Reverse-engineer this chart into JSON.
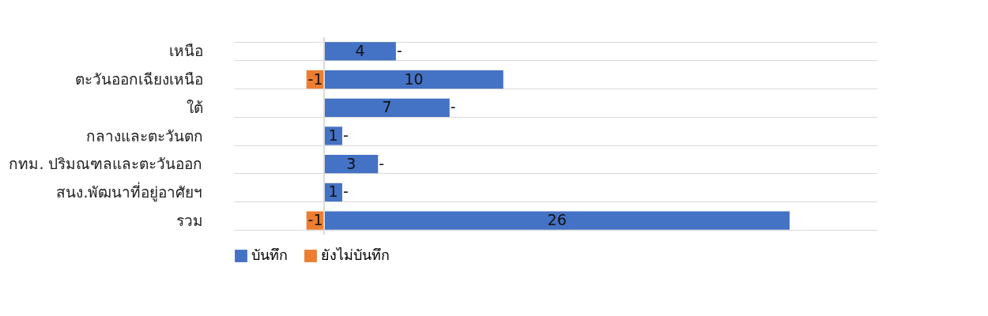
{
  "chart_data": {
    "type": "bar",
    "orientation": "horizontal",
    "stacked": true,
    "grid": "y",
    "legend": "bottom",
    "tick_labels": "y",
    "categories": [
      "เหนือ",
      "ตะวันออกเฉียงเหนือ",
      "ใต้",
      "กลางและตะวันตก",
      "กทม. ปริมณฑลและตะวันออก",
      "สนง.พัฒนาที่อยู่อาศัยฯ",
      "รวม"
    ],
    "series": [
      {
        "name": "บันทึก",
        "color": "#4472c4",
        "values": [
          4,
          10,
          7,
          1,
          3,
          1,
          26
        ],
        "value_labels": [
          "4",
          "10",
          "7",
          "1",
          "3",
          "1",
          "26"
        ]
      },
      {
        "name": "ยังไม่บันทึก",
        "color": "#ed7d31",
        "values": [
          0,
          -1,
          0,
          0,
          0,
          0,
          -1
        ],
        "value_labels": [
          "-",
          "-1",
          "-",
          "-",
          "-",
          "-",
          "-1"
        ]
      }
    ]
  }
}
